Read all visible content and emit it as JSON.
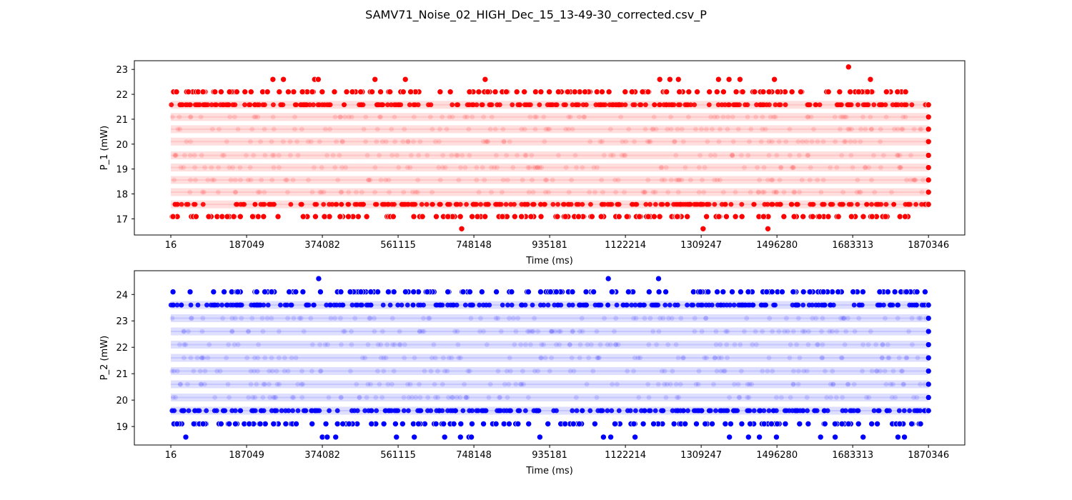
{
  "figure": {
    "title": "SAMV71_Noise_02_HIGH_Dec_15_13-49-30_corrected.csv_P"
  },
  "chart_data": [
    {
      "type": "scatter",
      "title": "",
      "xlabel": "Time (ms)",
      "ylabel": "P_1 (mW)",
      "xlim": [
        -90000,
        1960000
      ],
      "ylim": [
        16.35,
        23.35
      ],
      "xticks": [
        16,
        187049,
        374082,
        561115,
        748148,
        935181,
        1122214,
        1309247,
        1496280,
        1683313,
        1870346
      ],
      "xtick_labels": [
        "16",
        "187049",
        "374082",
        "561115",
        "748148",
        "935181",
        "1122214",
        "1309247",
        "1496280",
        "1683313",
        "1870346"
      ],
      "yticks": [
        17,
        18,
        19,
        20,
        21,
        22,
        23
      ],
      "ytick_labels": [
        "17",
        "18",
        "19",
        "20",
        "21",
        "22",
        "23"
      ],
      "grid": false,
      "color": "#ff0000",
      "series": [
        {
          "dense_levels": [
            17.58,
            18.07,
            18.56,
            19.06,
            19.55,
            20.1,
            20.6,
            21.09,
            21.58
          ],
          "sparse_levels": [
            17.09,
            22.1
          ],
          "x_range": [
            16,
            1870346
          ],
          "outliers": [
            {
              "x": 718000,
              "y": 16.6
            },
            {
              "x": 1314000,
              "y": 16.6
            },
            {
              "x": 1474000,
              "y": 16.6
            },
            {
              "x": 252000,
              "y": 22.6
            },
            {
              "x": 278000,
              "y": 22.6
            },
            {
              "x": 355000,
              "y": 22.6
            },
            {
              "x": 364000,
              "y": 22.6
            },
            {
              "x": 504000,
              "y": 22.6
            },
            {
              "x": 579000,
              "y": 22.6
            },
            {
              "x": 776000,
              "y": 22.6
            },
            {
              "x": 1207000,
              "y": 22.6
            },
            {
              "x": 1232000,
              "y": 22.6
            },
            {
              "x": 1253000,
              "y": 22.6
            },
            {
              "x": 1352000,
              "y": 22.6
            },
            {
              "x": 1378000,
              "y": 22.6
            },
            {
              "x": 1405000,
              "y": 22.6
            },
            {
              "x": 1490000,
              "y": 22.6
            },
            {
              "x": 1727000,
              "y": 22.6
            },
            {
              "x": 1673000,
              "y": 23.1
            }
          ]
        }
      ]
    },
    {
      "type": "scatter",
      "title": "",
      "xlabel": "Time (ms)",
      "ylabel": "P_2 (mW)",
      "xlim": [
        -90000,
        1960000
      ],
      "ylim": [
        18.3,
        24.9
      ],
      "xticks": [
        16,
        187049,
        374082,
        561115,
        748148,
        935181,
        1122214,
        1309247,
        1496280,
        1683313,
        1870346
      ],
      "xtick_labels": [
        "16",
        "187049",
        "374082",
        "561115",
        "748148",
        "935181",
        "1122214",
        "1309247",
        "1496280",
        "1683313",
        "1870346"
      ],
      "yticks": [
        19,
        20,
        21,
        22,
        23,
        24
      ],
      "ytick_labels": [
        "19",
        "20",
        "21",
        "22",
        "23",
        "24"
      ],
      "grid": false,
      "color": "#0000ff",
      "series": [
        {
          "dense_levels": [
            19.6,
            20.1,
            20.6,
            21.1,
            21.6,
            22.1,
            22.6,
            23.1,
            23.6
          ],
          "sparse_levels": [
            19.1,
            24.1
          ],
          "x_range": [
            16,
            1870346
          ],
          "outliers": [
            {
              "x": 37000,
              "y": 18.6
            },
            {
              "x": 374000,
              "y": 18.6
            },
            {
              "x": 386000,
              "y": 18.6
            },
            {
              "x": 407000,
              "y": 18.6
            },
            {
              "x": 557000,
              "y": 18.6
            },
            {
              "x": 601000,
              "y": 18.6
            },
            {
              "x": 676000,
              "y": 18.6
            },
            {
              "x": 715000,
              "y": 18.6
            },
            {
              "x": 736000,
              "y": 18.6
            },
            {
              "x": 742000,
              "y": 18.6
            },
            {
              "x": 911000,
              "y": 18.6
            },
            {
              "x": 1068000,
              "y": 18.6
            },
            {
              "x": 1086000,
              "y": 18.6
            },
            {
              "x": 1146000,
              "y": 18.6
            },
            {
              "x": 1379000,
              "y": 18.6
            },
            {
              "x": 1426000,
              "y": 18.6
            },
            {
              "x": 1453000,
              "y": 18.6
            },
            {
              "x": 1495000,
              "y": 18.6
            },
            {
              "x": 1604000,
              "y": 18.6
            },
            {
              "x": 1640000,
              "y": 18.6
            },
            {
              "x": 1709000,
              "y": 18.6
            },
            {
              "x": 1795000,
              "y": 18.6
            },
            {
              "x": 1811000,
              "y": 18.6
            },
            {
              "x": 365000,
              "y": 24.6
            },
            {
              "x": 1080000,
              "y": 24.6
            },
            {
              "x": 1204000,
              "y": 24.6
            }
          ]
        }
      ]
    }
  ]
}
